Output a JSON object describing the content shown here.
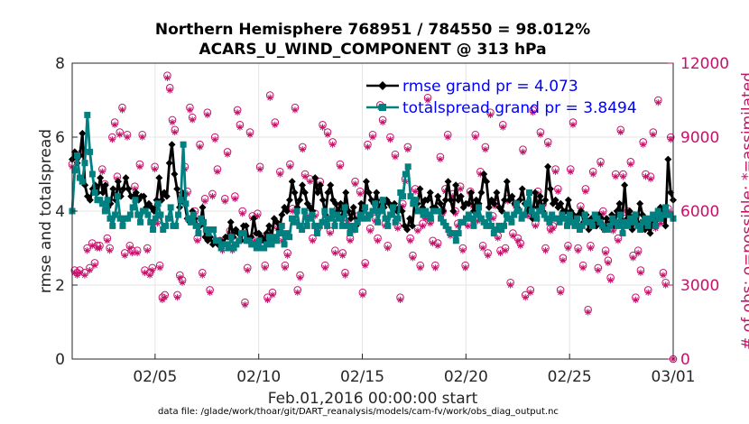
{
  "colors": {
    "rmse": "#000000",
    "totalspread": "#008080",
    "obs": "#c5126a",
    "legend_text": "#0000ff",
    "grid": "#e6e6e6",
    "axis": "#262626"
  },
  "chart_data": {
    "type": "line",
    "title_line1": "Northern Hemisphere 768951 / 784550 = 98.012%",
    "title_line2": "ACARS_U_WIND_COMPONENT @ 313 hPa",
    "ylabel": "rmse and totalspread",
    "y2label": "# of obs: o=possible; *=assimilated",
    "xlabel": "Feb.01,2016 00:00:00 start",
    "footnote": "data file: /glade/work/thoar/git/DART_reanalysis/models/cam-fv/work/obs_diag_output.nc",
    "xlim": [
      1,
      30
    ],
    "ylim": [
      0,
      8
    ],
    "y2lim": [
      0,
      12000
    ],
    "grid": true,
    "legend_position": "top-right",
    "yticks": [
      "0",
      "2",
      "4",
      "6",
      "8"
    ],
    "y2ticks": [
      "0",
      "3000",
      "6000",
      "9000",
      "12000"
    ],
    "xticks": [
      {
        "value": 5,
        "label": "02/05"
      },
      {
        "value": 10,
        "label": "02/10"
      },
      {
        "value": 15,
        "label": "02/15"
      },
      {
        "value": 20,
        "label": "02/20"
      },
      {
        "value": 25,
        "label": "02/25"
      },
      {
        "value": 30,
        "label": "03/01"
      }
    ],
    "series": [
      {
        "name": "rmse grand pr = 4.073",
        "axis": "left",
        "marker": "diamond",
        "values": [
          5.4,
          5.6,
          5.3,
          5.5,
          6.1,
          4.7,
          4.4,
          4.3,
          4.6,
          4.7,
          4.5,
          4.9,
          4.5,
          4.7,
          4.1,
          4.2,
          4.6,
          4.3,
          4.8,
          4.4,
          4.6,
          4.9,
          4.6,
          4.4,
          4.4,
          4.5,
          4.3,
          4.4,
          4.4,
          4.1,
          4.2,
          4.1,
          4.0,
          4.3,
          4.9,
          4.3,
          4.5,
          4.4,
          5.3,
          5.8,
          5.0,
          4.6,
          4.1,
          4.5,
          4.2,
          3.8,
          3.7,
          4.0,
          3.8,
          3.6,
          3.6,
          4.1,
          3.3,
          3.2,
          3.3,
          3.1,
          3.2,
          3.1,
          3.2,
          3.1,
          3.3,
          3.3,
          3.7,
          3.3,
          3.5,
          3.4,
          3.2,
          3.6,
          3.6,
          3.2,
          3.3,
          3.8,
          3.4,
          3.4,
          3.3,
          3.2,
          3.4,
          3.6,
          3.3,
          3.8,
          3.7,
          3.5,
          3.9,
          4.1,
          4.0,
          4.3,
          4.8,
          4.5,
          4.1,
          4.3,
          4.7,
          4.5,
          4.2,
          4.1,
          4.0,
          4.9,
          4.5,
          4.7,
          4.3,
          3.9,
          4.5,
          4.7,
          4.3,
          4.2,
          4.0,
          4.2,
          3.9,
          4.5,
          4.0,
          3.8,
          4.1,
          3.6,
          3.8,
          4.2,
          4.0,
          4.8,
          4.5,
          4.3,
          4.2,
          4.5,
          4.0,
          4.3,
          4.1,
          4.3,
          4.2,
          4.1,
          4.2,
          4.0,
          4.1,
          4.0,
          3.6,
          3.5,
          3.8,
          3.6,
          4.3,
          4.2,
          4.6,
          4.1,
          4.3,
          4.3,
          4.5,
          4.1,
          4.1,
          4.4,
          4.2,
          4.0,
          4.3,
          4.8,
          4.3,
          4.0,
          4.7,
          4.3,
          4.4,
          4.1,
          4.2,
          4.2,
          4.5,
          4.0,
          4.3,
          4.2,
          4.5,
          5.0,
          4.8,
          4.1,
          4.3,
          4.2,
          4.5,
          4.1,
          4.0,
          4.3,
          4.8,
          4.3,
          4.4,
          4.2,
          4.1,
          4.3,
          4.6,
          4.2,
          4.0,
          4.1,
          3.8,
          4.5,
          4.1,
          4.4,
          4.0,
          4.3,
          5.2,
          4.6,
          4.2,
          4.3,
          4.1,
          4.2,
          4.0,
          4.0,
          4.3,
          4.0,
          3.9,
          3.8,
          3.9,
          4.0,
          3.7,
          3.9,
          3.5,
          3.8,
          3.7,
          3.6,
          3.9,
          3.8,
          3.5,
          3.8,
          3.6,
          3.9,
          3.6,
          4.0,
          4.2,
          3.7,
          4.7,
          3.8,
          4.0,
          3.5,
          3.9,
          3.7,
          4.2,
          3.9,
          3.5,
          3.6,
          3.4,
          3.8,
          3.6,
          3.8,
          4.1,
          3.9,
          3.6,
          5.4,
          4.5,
          4.3
        ]
      },
      {
        "name": "totalspread grand pr = 3.8494",
        "axis": "left",
        "marker": "square",
        "values": [
          4.0,
          5.1,
          5.5,
          4.9,
          4.8,
          5.3,
          6.6,
          5.6,
          5.0,
          4.5,
          4.3,
          4.3,
          4.2,
          4.0,
          4.3,
          3.8,
          3.6,
          3.9,
          4.4,
          3.8,
          3.6,
          3.8,
          3.8,
          3.9,
          4.1,
          4.3,
          3.9,
          3.7,
          4.0,
          4.0,
          3.9,
          3.7,
          3.5,
          3.8,
          4.2,
          3.9,
          3.5,
          3.6,
          3.8,
          4.1,
          3.6,
          3.6,
          3.9,
          4.3,
          5.8,
          4.2,
          3.8,
          3.7,
          3.9,
          3.6,
          3.4,
          3.8,
          3.7,
          3.5,
          3.4,
          3.5,
          3.5,
          3.2,
          3.2,
          3.0,
          3.1,
          3.1,
          3.0,
          3.3,
          3.0,
          3.1,
          3.2,
          3.4,
          3.4,
          3.2,
          3.2,
          3.1,
          3.1,
          3.0,
          3.2,
          3.0,
          3.0,
          3.1,
          3.3,
          3.1,
          3.3,
          3.2,
          3.4,
          3.6,
          3.1,
          3.4,
          3.3,
          3.8,
          3.7,
          4.0,
          3.6,
          3.5,
          4.0,
          3.6,
          3.8,
          3.9,
          3.6,
          3.4,
          3.6,
          3.7,
          4.0,
          3.6,
          3.8,
          4.0,
          3.6,
          3.9,
          3.8,
          3.6,
          4.1,
          3.6,
          3.4,
          3.6,
          3.5,
          3.7,
          3.9,
          3.8,
          4.1,
          3.8,
          3.9,
          4.0,
          4.2,
          3.7,
          4.0,
          4.3,
          3.8,
          3.6,
          3.9,
          4.1,
          3.7,
          3.8,
          4.5,
          4.4,
          5.0,
          5.2,
          4.4,
          4.2,
          4.3,
          4.0,
          4.0,
          3.9,
          4.0,
          3.9,
          3.8,
          4.0,
          4.0,
          4.0,
          3.8,
          3.7,
          3.6,
          3.5,
          3.4,
          3.4,
          3.2,
          3.4,
          3.7,
          3.7,
          3.8,
          3.9,
          3.8,
          3.6,
          3.9,
          4.1,
          3.8,
          3.7,
          3.6,
          3.9,
          3.6,
          3.4,
          3.5,
          3.6,
          3.5,
          3.6,
          3.9,
          3.8,
          3.7,
          3.9,
          4.2,
          4.0,
          3.8,
          3.9,
          4.2,
          4.5,
          4.0,
          3.9,
          3.8,
          4.0,
          4.1,
          3.9,
          3.8,
          3.7,
          3.9,
          3.8,
          3.8,
          3.7,
          3.9,
          3.8,
          3.6,
          3.9,
          3.7,
          3.6,
          3.8,
          3.5,
          3.6,
          3.9,
          3.7,
          3.7,
          3.6,
          3.9,
          3.8,
          3.7,
          3.6,
          3.5,
          3.5,
          3.6,
          3.8,
          3.7,
          3.6,
          3.9,
          3.4,
          3.7,
          3.6,
          3.8,
          3.7,
          3.9,
          3.6,
          3.5,
          3.7,
          3.8,
          3.6,
          3.8,
          3.9,
          3.6,
          4.0,
          3.8,
          3.9,
          4.1,
          3.9,
          3.9,
          3.8
        ]
      },
      {
        "name": "possible",
        "axis": "right",
        "marker": "circle",
        "values": [
          7900,
          3600,
          3500,
          3600,
          8400,
          3500,
          4500,
          3700,
          4700,
          3900,
          4600,
          4600,
          7700,
          7100,
          4900,
          4500,
          9000,
          9600,
          7400,
          9200,
          10200,
          4300,
          9100,
          4600,
          4400,
          7000,
          4400,
          7900,
          9100,
          3600,
          4500,
          3500,
          3700,
          7800,
          5600,
          3800,
          2500,
          2600,
          11500,
          11000,
          9700,
          9300,
          2600,
          3400,
          3200,
          7800,
          6800,
          10200,
          9800,
          6000,
          4900,
          8700,
          3500,
          6500,
          10000,
          2800,
          6700,
          9000,
          7700,
          4800,
          4500,
          6500,
          8400,
          5200,
          4500,
          6600,
          10100,
          9500,
          6000,
          2300,
          3700,
          9200,
          5800,
          4900,
          5900,
          7800,
          4900,
          3800,
          2500,
          10700,
          2700,
          9600,
          5400,
          7600,
          4900,
          3800,
          4300,
          7900,
          6100,
          10200,
          2800,
          3400,
          8600,
          7500,
          5900,
          7300,
          4900,
          5900,
          5300,
          7200,
          9500,
          3800,
          9200,
          5200,
          8800,
          4400,
          6100,
          7900,
          4300,
          3500,
          5700,
          4900,
          5300,
          7200,
          5800,
          6800,
          2700,
          3900,
          8700,
          5300,
          9100,
          5700,
          4900,
          10300,
          9700,
          5500,
          4600,
          9000,
          6200,
          8300,
          5400,
          2500,
          6300,
          7300,
          8600,
          4900,
          4200,
          6900,
          5300,
          3800,
          5500,
          5800,
          10600,
          5600,
          4800,
          3800,
          4700,
          8200,
          6000,
          6900,
          9100,
          5100,
          6700,
          6000,
          5500,
          7000,
          4500,
          3800,
          5500,
          6800,
          6300,
          9100,
          5700,
          7600,
          4600,
          8600,
          4300,
          10000,
          5800,
          6300,
          5000,
          4400,
          9500,
          4500,
          6500,
          3100,
          5100,
          6300,
          4900,
          4700,
          8500,
          2600,
          5900,
          2800,
          10100,
          5500,
          6800,
          9200,
          6300,
          4500,
          8800,
          5300,
          5400,
          7700,
          6900,
          2800,
          4100,
          5800,
          4600,
          7700,
          9600,
          5600,
          4500,
          6200,
          3800,
          6900,
          2000,
          4600,
          7600,
          5500,
          3700,
          8000,
          6000,
          4400,
          4000,
          3300,
          5300,
          7500,
          4900,
          9300,
          7500,
          5700,
          6000,
          8000,
          4200,
          2500,
          4400,
          3600,
          8800,
          7500,
          2800,
          7400,
          9200,
          5400,
          10500,
          5600,
          3500,
          3100,
          6100,
          9000,
          0
        ]
      },
      {
        "name": "assimilated",
        "axis": "right",
        "marker": "asterisk",
        "values": [
          7800,
          3500,
          3400,
          3500,
          8300,
          3400,
          4400,
          3600,
          4600,
          3800,
          4500,
          4500,
          7600,
          7000,
          4800,
          4400,
          8900,
          9500,
          7300,
          9100,
          10100,
          4200,
          9000,
          4500,
          4300,
          6900,
          4300,
          7800,
          9000,
          3500,
          4400,
          3400,
          3600,
          7700,
          5500,
          3700,
          2400,
          2500,
          11400,
          10900,
          9600,
          9200,
          2500,
          3300,
          3100,
          7700,
          6700,
          10100,
          9700,
          5900,
          4800,
          8600,
          3400,
          6400,
          9900,
          2700,
          6600,
          8900,
          7600,
          4700,
          4400,
          6400,
          8300,
          5100,
          4400,
          6500,
          10000,
          9400,
          5900,
          2200,
          3600,
          9100,
          5700,
          4800,
          5800,
          7700,
          4800,
          3700,
          2400,
          10600,
          2600,
          9500,
          5300,
          7500,
          4800,
          3700,
          4200,
          7800,
          6000,
          10100,
          2700,
          3300,
          8500,
          7400,
          5800,
          7200,
          4800,
          5800,
          5200,
          7100,
          9400,
          3700,
          9100,
          5100,
          8700,
          4300,
          6000,
          7800,
          4200,
          3400,
          5600,
          4800,
          5200,
          7100,
          5700,
          6700,
          2600,
          3800,
          8600,
          5200,
          9000,
          5600,
          4800,
          10200,
          9600,
          5400,
          4500,
          8900,
          6100,
          8200,
          5300,
          2400,
          6200,
          7200,
          8500,
          4800,
          4100,
          6800,
          5200,
          3700,
          5400,
          5700,
          10500,
          5500,
          4700,
          3700,
          4600,
          8100,
          5900,
          6800,
          9000,
          5000,
          6600,
          5900,
          5400,
          6900,
          4400,
          3700,
          5400,
          6700,
          6200,
          9000,
          5600,
          7500,
          4500,
          8500,
          4200,
          9900,
          5700,
          6200,
          4900,
          4300,
          9400,
          4400,
          6400,
          3000,
          5000,
          6200,
          4800,
          4600,
          8400,
          2500,
          5800,
          2700,
          10000,
          5400,
          6700,
          9100,
          6200,
          4400,
          8700,
          5200,
          5300,
          7600,
          6800,
          2700,
          4000,
          5700,
          4500,
          7600,
          9500,
          5500,
          4400,
          6100,
          3700,
          6800,
          1900,
          4500,
          7500,
          5400,
          3600,
          7900,
          5900,
          4300,
          3900,
          3200,
          5200,
          7400,
          4800,
          9200,
          7400,
          5600,
          5900,
          7900,
          4100,
          2400,
          4300,
          3500,
          8700,
          7400,
          2700,
          7300,
          9100,
          5300,
          10400,
          5500,
          3400,
          3000,
          6000,
          8900,
          0
        ]
      }
    ]
  }
}
